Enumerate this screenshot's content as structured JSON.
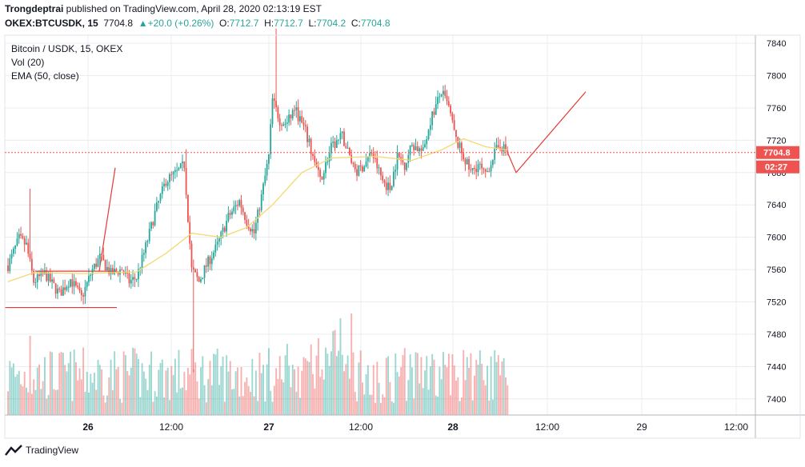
{
  "header": {
    "publisher_name": "Trongdeptrai",
    "published_text": " published on TradingView.com, April 28, 2020 02:13:19 EST",
    "symbol_line_prefix": "OKEX:BTCUSDK, 15",
    "last_price": "7704.8",
    "change": "▲+20.0 (+0.26%)",
    "ohlc_o_label": "O:",
    "ohlc_o": "7712.7",
    "ohlc_h_label": "H:",
    "ohlc_h": "7712.7",
    "ohlc_l_label": "L:",
    "ohlc_l": "7704.2",
    "ohlc_c_label": "C:",
    "ohlc_c": "7704.8"
  },
  "legend": {
    "symbol": "Bitcoin / USDK, 15, OKEX",
    "volume": "Vol (20)",
    "ema": "EMA (50, close)"
  },
  "price_label": "7704.8",
  "countdown_label": "02:27",
  "footer": {
    "brand": "TradingView"
  },
  "colors": {
    "up": "#26a69a",
    "down": "#ef5350",
    "ema": "#f5d76e",
    "grid": "#e9ecf1",
    "drawing": "#e53935"
  },
  "chart_data": {
    "type": "candlestick",
    "ylim": [
      7380,
      7850
    ],
    "y_ticks": [
      7400,
      7440,
      7480,
      7520,
      7560,
      7600,
      7640,
      7680,
      7720,
      7760,
      7800,
      7840
    ],
    "x_tick_labels": [
      "26",
      "12:00",
      "27",
      "12:00",
      "28",
      "12:00",
      "29",
      "12:00"
    ],
    "current_price": 7704.8,
    "price_path": [
      [
        0,
        7565
      ],
      [
        6,
        7598
      ],
      [
        10,
        7590
      ],
      [
        14,
        7545
      ],
      [
        20,
        7555
      ],
      [
        28,
        7530
      ],
      [
        34,
        7548
      ],
      [
        40,
        7525
      ],
      [
        46,
        7560
      ],
      [
        50,
        7575
      ],
      [
        56,
        7555
      ],
      [
        62,
        7560
      ],
      [
        66,
        7545
      ],
      [
        70,
        7550
      ],
      [
        74,
        7580
      ],
      [
        80,
        7630
      ],
      [
        86,
        7670
      ],
      [
        92,
        7680
      ],
      [
        96,
        7690
      ],
      [
        100,
        7560
      ],
      [
        104,
        7545
      ],
      [
        108,
        7565
      ],
      [
        114,
        7590
      ],
      [
        120,
        7625
      ],
      [
        126,
        7645
      ],
      [
        130,
        7620
      ],
      [
        134,
        7605
      ],
      [
        138,
        7650
      ],
      [
        142,
        7700
      ],
      [
        144,
        7770
      ],
      [
        148,
        7745
      ],
      [
        152,
        7740
      ],
      [
        156,
        7760
      ],
      [
        162,
        7730
      ],
      [
        166,
        7700
      ],
      [
        170,
        7670
      ],
      [
        176,
        7710
      ],
      [
        182,
        7725
      ],
      [
        186,
        7700
      ],
      [
        190,
        7680
      ],
      [
        194,
        7690
      ],
      [
        198,
        7705
      ],
      [
        204,
        7670
      ],
      [
        208,
        7660
      ],
      [
        212,
        7700
      ],
      [
        216,
        7690
      ],
      [
        220,
        7715
      ],
      [
        226,
        7705
      ],
      [
        230,
        7745
      ],
      [
        236,
        7780
      ],
      [
        240,
        7760
      ],
      [
        244,
        7720
      ],
      [
        248,
        7700
      ],
      [
        252,
        7680
      ],
      [
        256,
        7690
      ],
      [
        260,
        7675
      ],
      [
        264,
        7700
      ],
      [
        268,
        7715
      ],
      [
        272,
        7704.8
      ]
    ],
    "ema_path": [
      [
        0,
        7545
      ],
      [
        14,
        7556
      ],
      [
        40,
        7555
      ],
      [
        70,
        7557
      ],
      [
        86,
        7580
      ],
      [
        100,
        7605
      ],
      [
        116,
        7600
      ],
      [
        130,
        7612
      ],
      [
        144,
        7640
      ],
      [
        160,
        7680
      ],
      [
        176,
        7698
      ],
      [
        200,
        7700
      ],
      [
        220,
        7695
      ],
      [
        236,
        7708
      ],
      [
        248,
        7722
      ],
      [
        260,
        7712
      ],
      [
        272,
        7708
      ]
    ],
    "volume_max": 7500
  }
}
